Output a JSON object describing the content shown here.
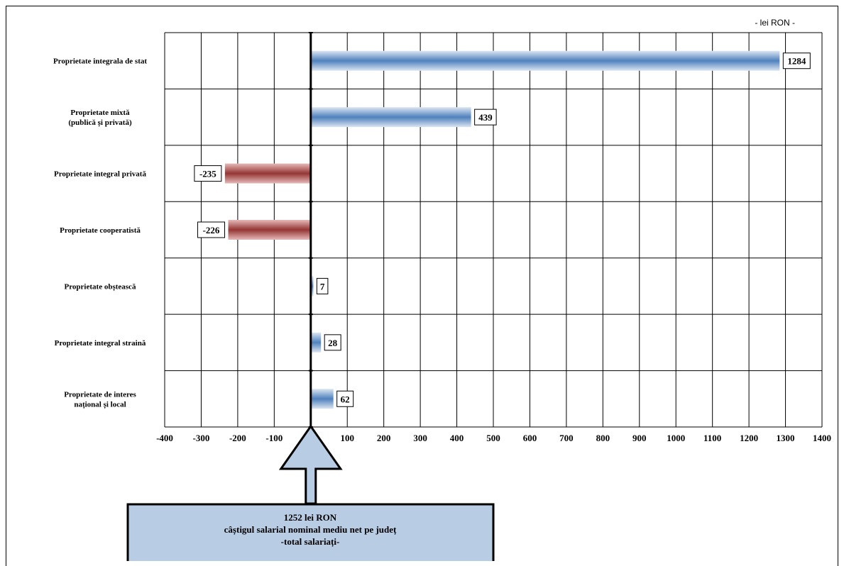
{
  "chart_data": {
    "type": "bar",
    "orientation": "horizontal",
    "unit_label": "- lei RON -",
    "categories": [
      [
        "Proprietate integrala de stat"
      ],
      [
        "Proprietate mixtă",
        "(publică și privată)"
      ],
      [
        "Proprietate integral privată"
      ],
      [
        "Proprietate cooperatistă"
      ],
      [
        "Proprietate obștească"
      ],
      [
        "Proprietate integral straină"
      ],
      [
        "Proprietate de interes",
        "național și local"
      ]
    ],
    "values": [
      1284,
      439,
      -235,
      -226,
      7,
      28,
      62
    ],
    "xlim": [
      -400,
      1400
    ],
    "xticks": [
      -400,
      -300,
      -200,
      -100,
      100,
      200,
      300,
      400,
      500,
      600,
      700,
      800,
      900,
      1000,
      1100,
      1200,
      1300,
      1400
    ],
    "grid": true,
    "colors": {
      "positive": "#4f81bd",
      "negative": "#943634"
    },
    "callout": {
      "lines": [
        "1252 lei RON",
        "câștigul salarial nominal mediu net pe județ",
        "-total salariați-"
      ],
      "fill": "#b8cce4"
    }
  }
}
